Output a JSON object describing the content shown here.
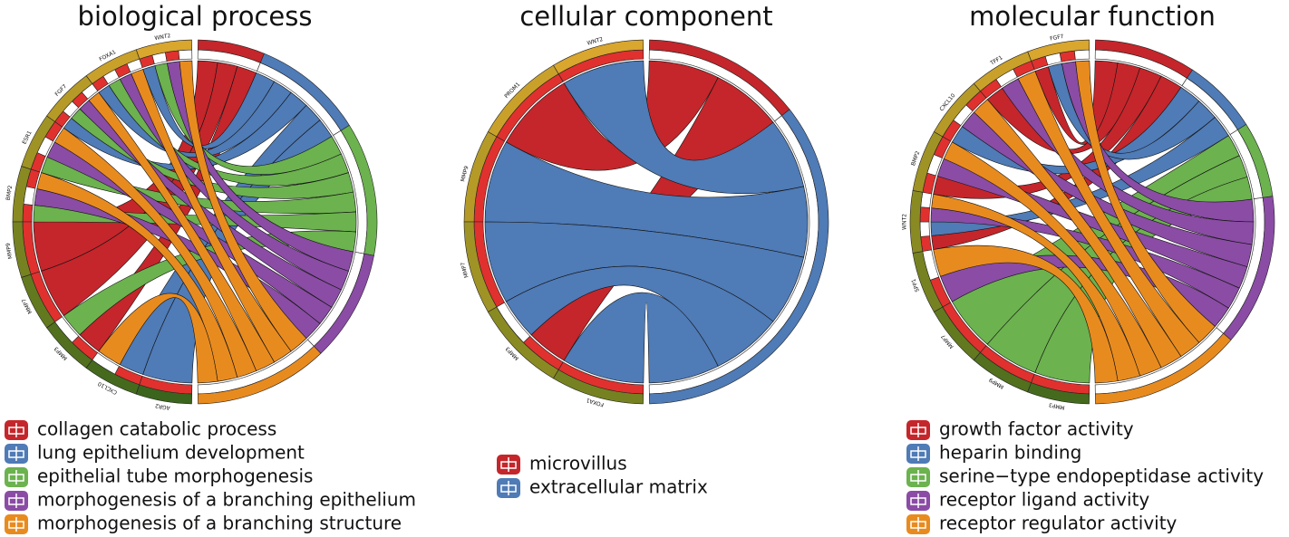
{
  "panels": [
    {
      "title": "biological process",
      "genes": [
        "WNT2",
        "FOXA1",
        "FGF7",
        "ESR1",
        "BMP2",
        "MMP9",
        "MMP7",
        "MMP3",
        "CXCL10",
        "AGR2"
      ],
      "terms": [
        {
          "name": "collagen catabolic process",
          "color": "#c4262b"
        },
        {
          "name": "lung epithelium development",
          "color": "#4f7bb6"
        },
        {
          "name": "epithelial tube morphogenesis",
          "color": "#6cb24f"
        },
        {
          "name": "morphogenesis of a branching epithelium",
          "color": "#8a4ca4"
        },
        {
          "name": "morphogenesis of a branching structure",
          "color": "#e88b1f"
        }
      ]
    },
    {
      "title": "cellular component",
      "genes": [
        "WNT2",
        "PROM1",
        "MMP9",
        "MMP7",
        "MMP3",
        "FOXA1"
      ],
      "terms": [
        {
          "name": "microvillus",
          "color": "#c4262b"
        },
        {
          "name": "extracellular matrix",
          "color": "#4f7bb6"
        }
      ]
    },
    {
      "title": "molecular function",
      "genes": [
        "FGF7",
        "TFF1",
        "CXCL10",
        "BMP2",
        "WNT2",
        "SPP1",
        "MMP7",
        "MMP9",
        "MMP3"
      ],
      "terms": [
        {
          "name": "growth factor activity",
          "color": "#c4262b"
        },
        {
          "name": "heparin binding",
          "color": "#4f7bb6"
        },
        {
          "name": "serine−type endopeptidase activity",
          "color": "#6cb24f"
        },
        {
          "name": "receptor ligand activity",
          "color": "#8a4ca4"
        },
        {
          "name": "receptor regulator activity",
          "color": "#e88b1f"
        }
      ]
    }
  ]
}
